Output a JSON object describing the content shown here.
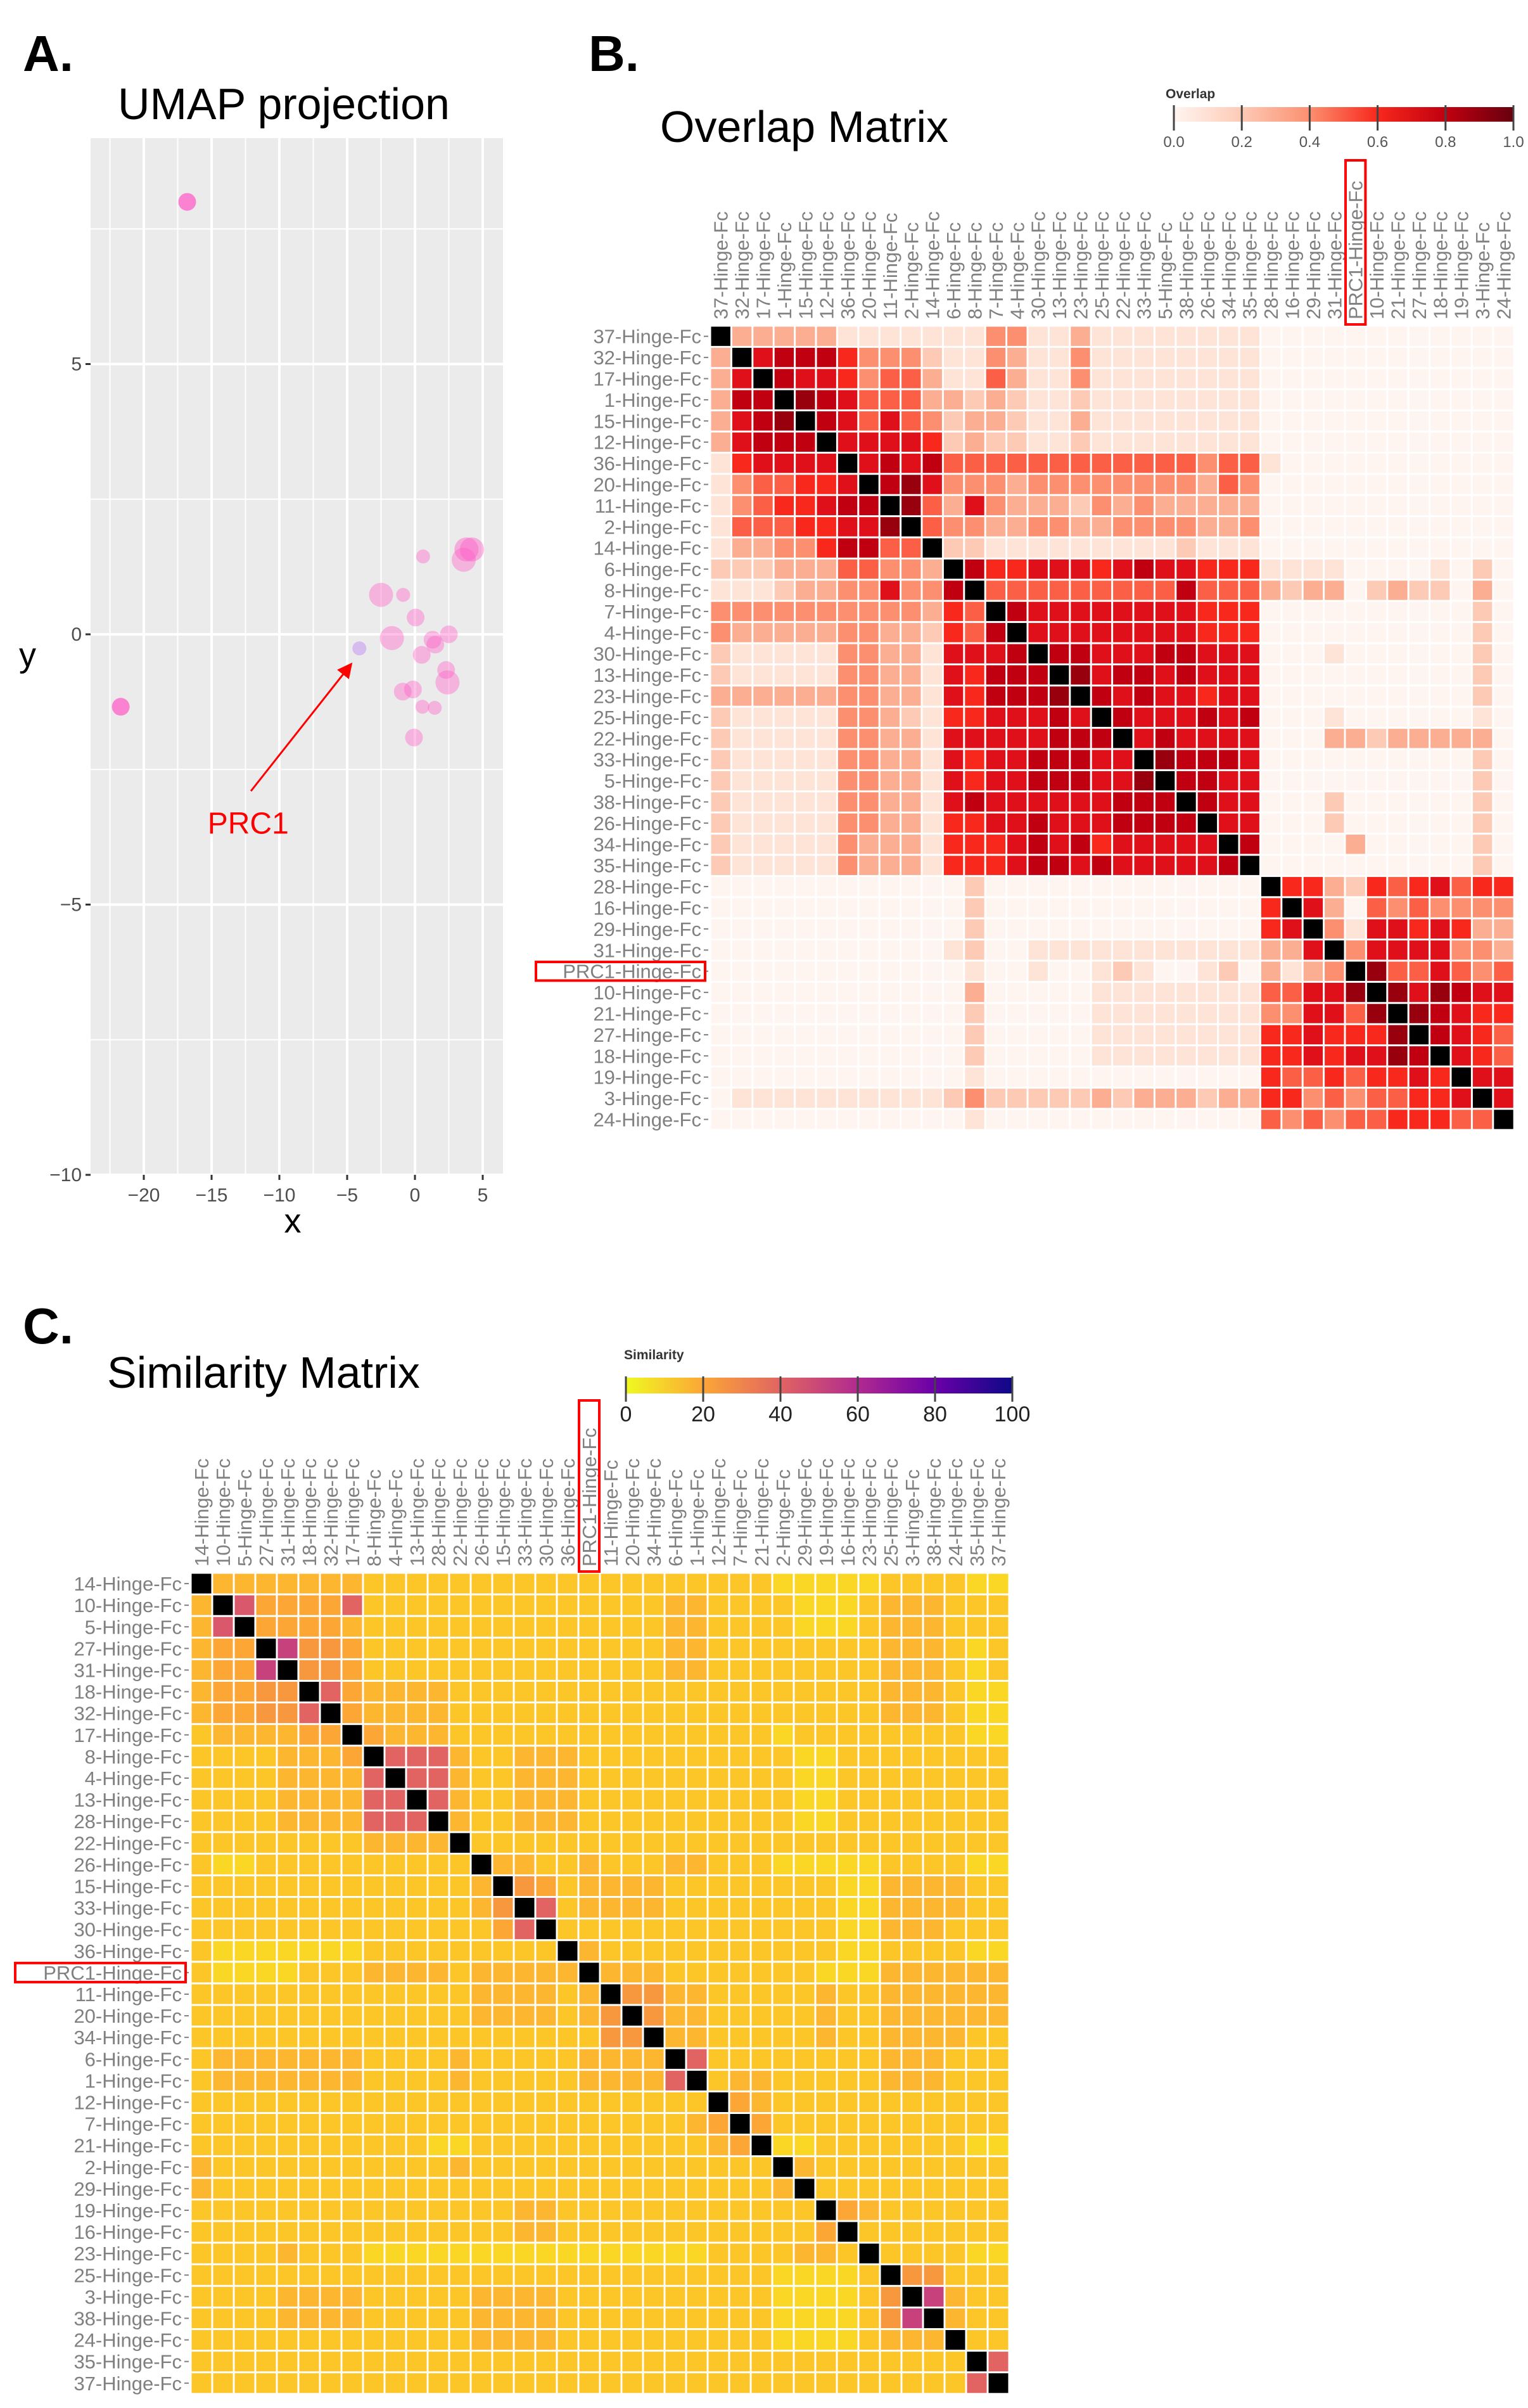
{
  "figure": {
    "panel_a_letter": "A.",
    "panel_b_letter": "B.",
    "panel_c_letter": "C."
  },
  "highlight_color": "#ff0000",
  "chart_data": [
    {
      "type": "scatter",
      "title": "UMAP projection",
      "xlabel": "x",
      "ylabel": "y",
      "xlim": [
        -23.9,
        6.5
      ],
      "ylim": [
        -10,
        9.2
      ],
      "xticks": [
        -20,
        -15,
        -10,
        -5,
        0,
        5
      ],
      "yticks": [
        -10,
        -5,
        0,
        5
      ],
      "xtick_labels": [
        "−20",
        "−15",
        "−10",
        "−5",
        "0",
        "5"
      ],
      "ytick_labels": [
        "−10",
        "−5",
        "0",
        "5"
      ],
      "grid": true,
      "point_color": "#ff5fc8",
      "highlight_point_color": "#c89cf0",
      "annotation": {
        "text": "PRC1",
        "color": "#ff0000",
        "text_at": [
          -12.3,
          -3.5
        ],
        "arrow_from": [
          -12.1,
          -2.9
        ],
        "arrow_to": [
          -4.7,
          -0.55
        ]
      },
      "points": [
        {
          "x": -16.8,
          "y": 8.0,
          "size": 2,
          "alpha": 0.75
        },
        {
          "x": -21.7,
          "y": -1.34,
          "size": 2,
          "alpha": 0.75
        },
        {
          "x": -4.1,
          "y": -0.26,
          "size": 1,
          "alpha": 0.6,
          "label": "PRC1"
        },
        {
          "x": -2.5,
          "y": 0.73,
          "size": 3,
          "alpha": 0.4
        },
        {
          "x": -0.87,
          "y": 0.73,
          "size": 1,
          "alpha": 0.4
        },
        {
          "x": 0.6,
          "y": 1.44,
          "size": 1,
          "alpha": 0.4
        },
        {
          "x": 3.8,
          "y": 1.57,
          "size": 3,
          "alpha": 0.45
        },
        {
          "x": 4.2,
          "y": 1.57,
          "size": 3,
          "alpha": 0.45
        },
        {
          "x": 3.6,
          "y": 1.38,
          "size": 3,
          "alpha": 0.4
        },
        {
          "x": 0.05,
          "y": 0.31,
          "size": 2,
          "alpha": 0.4
        },
        {
          "x": -1.7,
          "y": -0.07,
          "size": 3,
          "alpha": 0.4
        },
        {
          "x": 1.3,
          "y": -0.1,
          "size": 2,
          "alpha": 0.4
        },
        {
          "x": 1.5,
          "y": -0.19,
          "size": 2,
          "alpha": 0.4
        },
        {
          "x": 2.5,
          "y": 0.0,
          "size": 2,
          "alpha": 0.4
        },
        {
          "x": 0.5,
          "y": -0.38,
          "size": 2,
          "alpha": 0.4
        },
        {
          "x": 2.3,
          "y": -0.66,
          "size": 2,
          "alpha": 0.4
        },
        {
          "x": 2.4,
          "y": -0.89,
          "size": 3,
          "alpha": 0.4
        },
        {
          "x": -0.9,
          "y": -1.06,
          "size": 2,
          "alpha": 0.4
        },
        {
          "x": -0.15,
          "y": -1.02,
          "size": 2,
          "alpha": 0.4
        },
        {
          "x": 0.55,
          "y": -1.34,
          "size": 1,
          "alpha": 0.4
        },
        {
          "x": 1.46,
          "y": -1.36,
          "size": 1,
          "alpha": 0.4
        },
        {
          "x": -0.07,
          "y": -1.91,
          "size": 2,
          "alpha": 0.4
        }
      ]
    },
    {
      "type": "heatmap",
      "title": "Overlap Matrix",
      "legend_title": "Overlap",
      "legend_ticks": [
        "0.0",
        "0.2",
        "0.4",
        "0.6",
        "0.8",
        "1.0"
      ],
      "range": [
        0,
        1
      ],
      "cell_encoding": "each char = value x 10 (digit 0-9); X = diagonal (self)",
      "diagonal_color": "#000000",
      "highlight_label": "PRC1-Hinge-Fc",
      "labels": [
        "37-Hinge-Fc",
        "32-Hinge-Fc",
        "17-Hinge-Fc",
        "1-Hinge-Fc",
        "15-Hinge-Fc",
        "12-Hinge-Fc",
        "36-Hinge-Fc",
        "20-Hinge-Fc",
        "11-Hinge-Fc",
        "2-Hinge-Fc",
        "14-Hinge-Fc",
        "6-Hinge-Fc",
        "8-Hinge-Fc",
        "7-Hinge-Fc",
        "4-Hinge-Fc",
        "30-Hinge-Fc",
        "13-Hinge-Fc",
        "23-Hinge-Fc",
        "25-Hinge-Fc",
        "22-Hinge-Fc",
        "33-Hinge-Fc",
        "5-Hinge-Fc",
        "38-Hinge-Fc",
        "26-Hinge-Fc",
        "34-Hinge-Fc",
        "35-Hinge-Fc",
        "28-Hinge-Fc",
        "16-Hinge-Fc",
        "29-Hinge-Fc",
        "31-Hinge-Fc",
        "PRC1-Hinge-Fc",
        "10-Hinge-Fc",
        "21-Hinge-Fc",
        "27-Hinge-Fc",
        "18-Hinge-Fc",
        "19-Hinge-Fc",
        "3-Hinge-Fc",
        "24-Hinge-Fc"
      ],
      "rows": [
        "X33333 11111 11 44 11311111111 000000000000",
        "3X7888 64442 11 43 11411111111 000000000000",
        "37X877 64553 11 53 11411111111 000000000000",
        "388X98 75553 32 32 11211111111 000000000000",
        "3789X8 75754 23 32 11311111111 000000000000",
        "37888X 77776 23 22 11211111111 000000000000",
        "167777 X7878 55 55 55555555455 100000000000",
        "145566 7X897 44 43 44444444354 000000000000",
        "145667 88X95 37 43 33243433333 000000000000",
        "155566 779X5 44 33 44334444334 000000000000",
        "133446 8855X 22 11 11111112111 000000000000",
        "222333 55443 X8 66 77767877666 111100001020",
        "111233 44744 8X 55 55555558555 323302322030",
        "444444 44443 65 X8 77777777666 000000000020",
        "433333 44332 65 8X 77777777666 000000000020",
        "211111 44331 77 78 X8877788777 000100000020",
        "211111 44331 76 88 8X978878777 000000000020",
        "333333 44331 76 88 89X87877677 000000000020",
        "211111 44321 66 77 787X8777878 000100000010",
        "211111 44331 77 77 7888X787777 000332333330",
        "211111 44331 76 77 88877X98887 000000000020",
        "211111 44331 76 77 888779X8877 000000000020",
        "211111 44331 78 77 7777888X877 000200000020",
        "211111 44331 66 77 87778888X77 000200000020",
        "211111 43331 66 67 878677777X8 000030000020",
        "211111 43331 66 67 8878777778X 000000000020",
        "000000 00000 02 00 00000000000 X66326567566",
        "000000 00000 02 00 00000000000 6X7305454444",
        "000000 00000 02 00 00000000000 67X417767633",
        "000000 00000 12 00 11111111111 337X47777443",
        "000000 00000 01 00 10012100120 3134X9557545",
        "000000 00000 03 00 00011111111 55779X979877",
        "000000 00000 02 00 00011111111 447759X98766",
        "000000 00000 02 00 00011111111 6676669X8765",
        "000000 00000 02 00 00011111111 66767798X765",
        "000000 00000 01 00 00000000000 655656676X77",
        "011111 11111 24 22 22232333233 6645455667X7",
        "000000 00000 01 00 00000000000 54545566655X"
      ]
    },
    {
      "type": "heatmap",
      "title": "Similarity Matrix",
      "legend_title": "Similarity",
      "legend_ticks": [
        "0",
        "20",
        "40",
        "60",
        "80",
        "100"
      ],
      "range": [
        0,
        100
      ],
      "cell_encoding": "each char = base-36 digit x 4; X = diagonal (self)",
      "diagonal_color": "#000000",
      "highlight_label": "PRC1-Hinge-Fc",
      "labels": [
        "14-Hinge-Fc",
        "10-Hinge-Fc",
        "5-Hinge-Fc",
        "27-Hinge-Fc",
        "31-Hinge-Fc",
        "18-Hinge-Fc",
        "32-Hinge-Fc",
        "17-Hinge-Fc",
        "8-Hinge-Fc",
        "4-Hinge-Fc",
        "13-Hinge-Fc",
        "28-Hinge-Fc",
        "22-Hinge-Fc",
        "26-Hinge-Fc",
        "15-Hinge-Fc",
        "33-Hinge-Fc",
        "30-Hinge-Fc",
        "36-Hinge-Fc",
        "PRC1-Hinge-Fc",
        "11-Hinge-Fc",
        "20-Hinge-Fc",
        "34-Hinge-Fc",
        "6-Hinge-Fc",
        "1-Hinge-Fc",
        "12-Hinge-Fc",
        "7-Hinge-Fc",
        "21-Hinge-Fc",
        "2-Hinge-Fc",
        "29-Hinge-Fc",
        "19-Hinge-Fc",
        "16-Hinge-Fc",
        "23-Hinge-Fc",
        "25-Hinge-Fc",
        "3-Hinge-Fc",
        "38-Hinge-Fc",
        "24-Hinge-Fc",
        "35-Hinge-Fc",
        "37-Hinge-Fc"
      ],
      "rows": [
        "X 4444444 3333 3 3333 33333 33 333 22222 333 3 22",
        "4 Xb5555a 3333 3 3333 33333 44 333 32223 444 3 33",
        "4 bX55554 3333 3 3333 33333 44 333 32223 444 3 33",
        "4 55Xd665 3333 3 3333 33333 44 333 33333 444 3 23",
        "4 55dX665 3333 3 3333 33333 44 333 33333 444 3 23",
        "4 5566Xa5 4444 3 3333 33333 33 333 33333 444 3 22",
        "4 5566aX5 4444 3 3333 33333 33 333 33333 444 3 22",
        "3 444455X 5444 3 3333 33333 33 333 23333 333 3 22",
        "3 3334445 Xaaa 4 3344 43333 33 333 32233 333 3 33",
        "3 3334444 aXaa 4 3344 43333 33 333 32233 333 3 33",
        "3 3334444 aaXa 4 3344 43333 33 333 32233 333 3 33",
        "3 3334444 aaaX 4 3344 43333 33 333 32233 333 3 33",
        "3 3333333 4444 X 3333 33333 33 333 33333 333 3 33",
        "3 2233333 3333 3 X443 34333 44 333 22222 333 3 22",
        "3 3333333 3333 3 4X65 34444 33 333 33322 444 4 33",
        "3 3333333 3333 3 46Xa 34444 33 333 33322 444 4 33",
        "3 3333333 3333 3 35aX 33333 33 333 33322 444 3 33",
        "3 2222222 3333 3 3333 X4333 33 333 33322 333 3 22",
        "3 2222333 4444 3 4444 4X444 33 333 33222 444 4 44",
        "3 3333333 3333 3 4444 34X66 44 333 33433 444 4 44",
        "3 3333333 3333 3 4444 346X6 44 333 33433 444 4 44",
        "3 3333333 3333 3 3333 3366X 44 333 33433 444 4 33",
        "3 4444444 3333 4 3333 34444 Xa 333 33333 444 3 33",
        "3 4444444 3333 4 3333 34444 aX 344 33333 444 3 33",
        "3 3333333 3333 3 3333 33333 33 X54 33333 333 3 33",
        "3 3333333 3333 3 3333 33333 34 5X5 33333 333 3 33",
        "3 3333333 3332 2 3333 33333 33 45X 22333 333 3 22",
        "4 3333333 3333 4 3333 33333 33 333 X4333 333 3 33",
        "4 3333333 3333 3 3333 33333 33 333 4X333 333 3 33",
        "3 3333333 3333 3 3344 33333 33 333 33X54 333 3 33",
        "3 3333333 3333 3 3344 33333 33 333 335X3 333 3 33",
        "3 3334333 2222 2 2222 22222 22 333 3443X 333 3 22",
        "3 3333333 3333 3 3333 33333 33 333 22223 X66 3 33",
        "3 3334444 3333 3 4444 33333 33 333 22223 6Xd 4 33",
        "3 3334444 3333 3 4444 33333 33 333 22223 6dX 4 33",
        "3 3333333 3333 3 4444 33333 33 333 22223 444 X 33",
        "3 3333333 3333 3 3333 33333 33 333 33333 333 3 Xa",
        "3 3333333 3333 3 3333 33333 33 333 33333 333 3 aX"
      ]
    }
  ]
}
